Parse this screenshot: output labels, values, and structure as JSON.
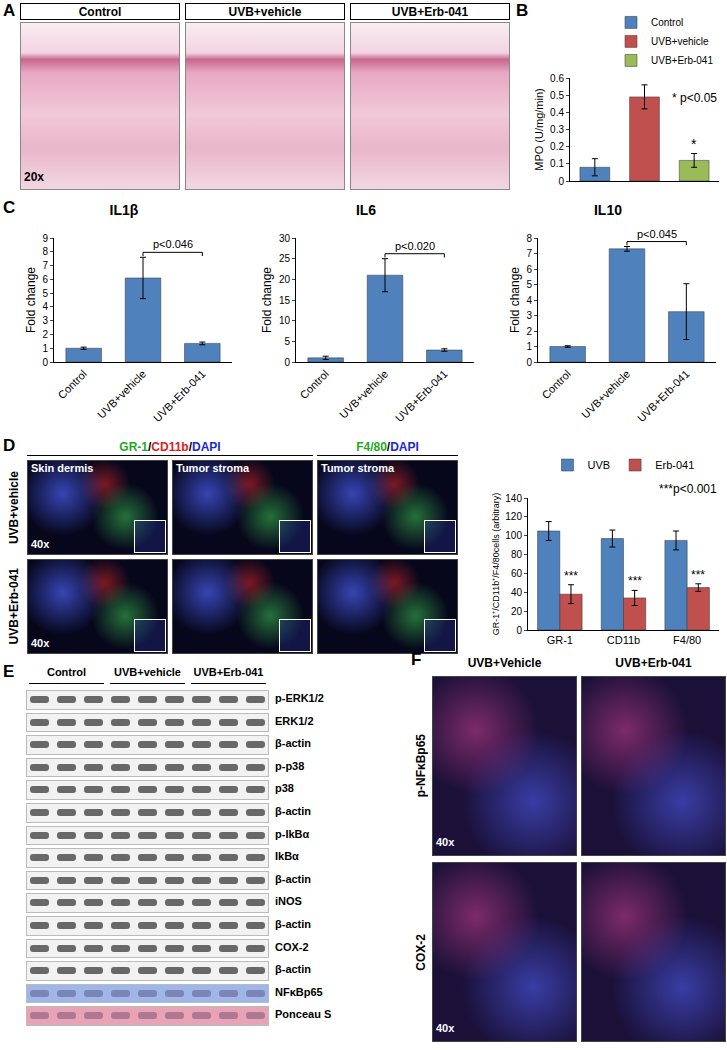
{
  "panel_labels": [
    "A",
    "B",
    "C",
    "D",
    "E",
    "F"
  ],
  "histology": {
    "images": [
      "Control",
      "UVB+vehicle",
      "UVB+Erb-041"
    ],
    "magnification": "20x"
  },
  "chart_data": [
    {
      "type": "bar",
      "categories": [
        "Control",
        "UVB+vehicle",
        "UVB+Erb-041"
      ],
      "values": [
        0.08,
        0.49,
        0.12
      ],
      "errors": [
        0.05,
        0.07,
        0.04
      ],
      "colors": [
        "#4f81bd",
        "#c0504d",
        "#9bbb59"
      ],
      "y_label": "MPO (U/mg/min)",
      "ylim": [
        0,
        0.6
      ],
      "yticks": [
        0,
        0.1,
        0.2,
        0.3,
        0.4,
        0.5,
        0.6
      ],
      "legend": "top right",
      "tick_labels": "y",
      "annotations": [
        {
          "text": "* p<0.05"
        },
        {
          "text": "*",
          "category": "UVB+Erb-041"
        }
      ]
    },
    {
      "type": "bar",
      "title": "IL1β",
      "categories": [
        "Control",
        "UVB+vehicle",
        "UVB+Erb-041"
      ],
      "values": [
        1.0,
        6.1,
        1.35
      ],
      "errors": [
        0.08,
        1.5,
        0.1
      ],
      "color": "#4f81bd",
      "y_label": "Fold change",
      "ylim": [
        0,
        9
      ],
      "yticks": [
        0,
        1,
        2,
        3,
        4,
        5,
        6,
        7,
        8,
        9
      ],
      "annotations": [
        {
          "text": "p<0.046",
          "between": [
            "UVB+vehicle",
            "UVB+Erb-041"
          ]
        }
      ]
    },
    {
      "type": "bar",
      "title": "IL6",
      "categories": [
        "Control",
        "UVB+vehicle",
        "UVB+Erb-041"
      ],
      "values": [
        1.0,
        21,
        2.9
      ],
      "errors": [
        0.4,
        4,
        0.3
      ],
      "color": "#4f81bd",
      "y_label": "Fold change",
      "ylim": [
        0,
        30
      ],
      "yticks": [
        0,
        5,
        10,
        15,
        20,
        25,
        30
      ],
      "annotations": [
        {
          "text": "p<0.020",
          "between": [
            "UVB+vehicle",
            "UVB+Erb-041"
          ]
        }
      ]
    },
    {
      "type": "bar",
      "title": "IL10",
      "categories": [
        "Control",
        "UVB+vehicle",
        "UVB+Erb-041"
      ],
      "values": [
        1.0,
        7.3,
        3.25
      ],
      "errors": [
        0.05,
        0.15,
        1.8
      ],
      "color": "#4f81bd",
      "y_label": "Fold change",
      "ylim": [
        0,
        8
      ],
      "yticks": [
        0,
        1,
        2,
        3,
        4,
        5,
        6,
        7,
        8
      ],
      "annotations": [
        {
          "text": "p<0.045",
          "between": [
            "UVB+vehicle",
            "UVB+Erb-041"
          ]
        }
      ]
    },
    {
      "type": "bar",
      "categories": [
        "GR-1",
        "CD11b",
        "F4/80"
      ],
      "series": [
        {
          "name": "UVB",
          "color": "#4f81bd",
          "values": [
            105,
            97,
            95
          ],
          "errors": [
            10,
            9,
            10
          ]
        },
        {
          "name": "Erb-041",
          "color": "#c0504d",
          "values": [
            38,
            34,
            45
          ],
          "errors": [
            10,
            8,
            4
          ]
        }
      ],
      "y_label": "GR-1⁺/CD11b⁺/F4/80cells (arbitrary)",
      "ylim": [
        0,
        140
      ],
      "yticks": [
        0,
        20,
        40,
        60,
        80,
        100,
        120,
        140
      ],
      "legend": "top",
      "annotations": [
        {
          "text": "***p<0.001"
        },
        {
          "text": "***",
          "series": "Erb-041"
        }
      ]
    }
  ],
  "immunofluorescence": {
    "stains": [
      {
        "parts": [
          {
            "text": "GR-1",
            "color": "#1faa1f"
          },
          {
            "text": "/",
            "color": "#000000"
          },
          {
            "text": "CD11b",
            "color": "#e0201a"
          },
          {
            "text": "/",
            "color": "#000000"
          },
          {
            "text": "DAPI",
            "color": "#1a2ad0"
          }
        ]
      },
      {
        "parts": [
          {
            "text": "F4/80",
            "color": "#1faa1f"
          },
          {
            "text": "/",
            "color": "#000000"
          },
          {
            "text": "DAPI",
            "color": "#1a2ad0"
          }
        ]
      }
    ],
    "regions": [
      "Skin dermis",
      "Tumor stroma",
      "Tumor stroma"
    ],
    "rows": [
      "UVB+vehicle",
      "UVB+Erb-041"
    ],
    "magnification": "40x"
  },
  "western_blot": {
    "lanes": [
      "Control",
      "UVB+vehicle",
      "UVB+Erb-041"
    ],
    "blots": [
      {
        "label": "p-ERK1/2"
      },
      {
        "label": "ERK1/2"
      },
      {
        "label": "β-actin"
      },
      {
        "label": "p-p38"
      },
      {
        "label": "p38"
      },
      {
        "label": "β-actin"
      },
      {
        "label": "p-IkBα"
      },
      {
        "label": "IkBα"
      },
      {
        "label": "β-actin"
      },
      {
        "label": "iNOS"
      },
      {
        "label": "β-actin"
      },
      {
        "label": "COX-2"
      },
      {
        "label": "β-actin"
      },
      {
        "label": "NFκBp65",
        "color": "#9fb7e8"
      },
      {
        "label": "Ponceau S",
        "color": "#e9a3b6"
      }
    ]
  },
  "staining": {
    "columns": [
      "UVB+Vehicle",
      "UVB+Erb-041"
    ],
    "rows": [
      "p-NFκBp65",
      "COX-2"
    ],
    "magnification": "40x"
  }
}
